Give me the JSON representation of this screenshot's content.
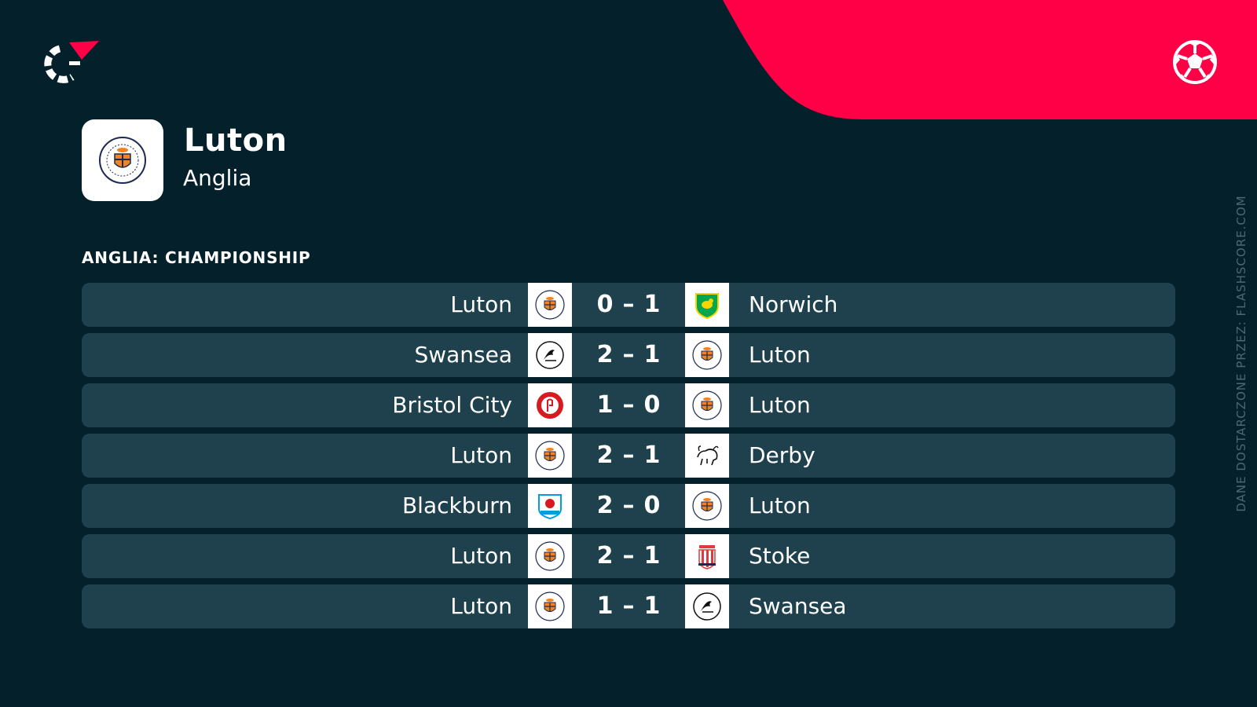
{
  "team": {
    "name": "Luton",
    "country": "Anglia"
  },
  "league": {
    "title": "ANGLIA: CHAMPIONSHIP"
  },
  "matches": [
    {
      "home": "Luton",
      "home_crest": "luton-crest",
      "home_score": "0",
      "away_score": "1",
      "away": "Norwich",
      "away_crest": "norwich-crest"
    },
    {
      "home": "Swansea",
      "home_crest": "swansea-crest",
      "home_score": "2",
      "away_score": "1",
      "away": "Luton",
      "away_crest": "luton-crest"
    },
    {
      "home": "Bristol City",
      "home_crest": "bristol-city-crest",
      "home_score": "1",
      "away_score": "0",
      "away": "Luton",
      "away_crest": "luton-crest"
    },
    {
      "home": "Luton",
      "home_crest": "luton-crest",
      "home_score": "2",
      "away_score": "1",
      "away": "Derby",
      "away_crest": "derby-crest"
    },
    {
      "home": "Blackburn",
      "home_crest": "blackburn-crest",
      "home_score": "2",
      "away_score": "0",
      "away": "Luton",
      "away_crest": "luton-crest"
    },
    {
      "home": "Luton",
      "home_crest": "luton-crest",
      "home_score": "2",
      "away_score": "1",
      "away": "Stoke",
      "away_crest": "stoke-crest"
    },
    {
      "home": "Luton",
      "home_crest": "luton-crest",
      "home_score": "1",
      "away_score": "1",
      "away": "Swansea",
      "away_crest": "swansea-crest"
    }
  ],
  "score_separator": "–",
  "credit": "DANE DOSTARCZONE PRZEZ: FLASHSCORE.COM",
  "icons": {
    "brand": "flashscore-logo-icon",
    "sport": "soccer-ball-icon"
  },
  "colors": {
    "background": "#04202b",
    "accent": "#ff0046",
    "row": "#1f414d",
    "crest_bg": "#ffffff"
  }
}
